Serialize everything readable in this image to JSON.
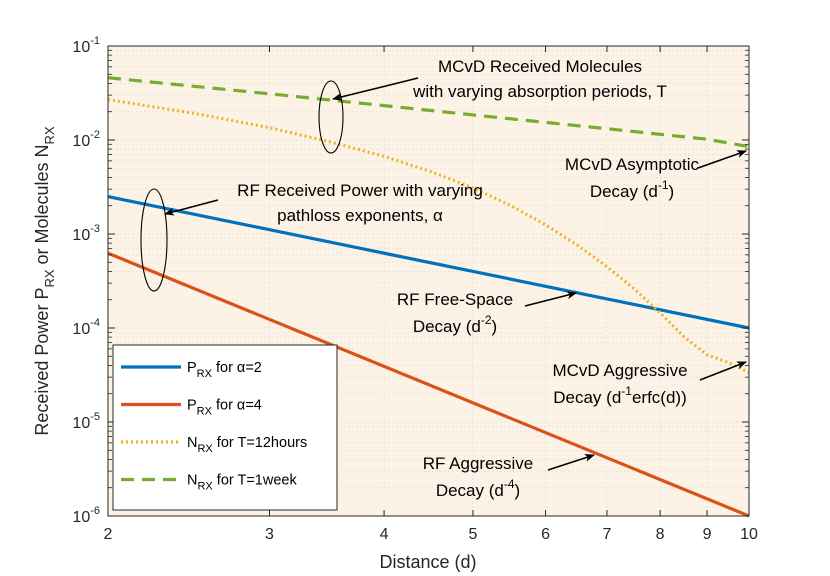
{
  "chart_data": {
    "type": "line",
    "x_scale": "log",
    "y_scale": "log",
    "xlabel": "Distance (d)",
    "ylabel": {
      "a": "Received Power P",
      "a_sub": "RX",
      "b": " or Molecules N",
      "b_sub": "RX"
    },
    "xlim": [
      2,
      10
    ],
    "ylim": [
      1e-06,
      0.1
    ],
    "x_ticks": [
      2,
      3,
      4,
      5,
      6,
      7,
      8,
      9,
      10
    ],
    "x_tick_labels": [
      "2",
      "3",
      "4",
      "5",
      "6",
      "7",
      "8",
      "9",
      "10"
    ],
    "y_ticks": [
      {
        "value": 1e-06,
        "base": "10",
        "exp": "-6"
      },
      {
        "value": 1e-05,
        "base": "10",
        "exp": "-5"
      },
      {
        "value": 0.0001,
        "base": "10",
        "exp": "-4"
      },
      {
        "value": 0.001,
        "base": "10",
        "exp": "-3"
      },
      {
        "value": 0.01,
        "base": "10",
        "exp": "-2"
      },
      {
        "value": 0.1,
        "base": "10",
        "exp": "-1"
      }
    ],
    "grid": true,
    "legend_position": "bottom-left",
    "series": [
      {
        "id": "p2",
        "name": {
          "main": "P",
          "sub": "RX",
          "rest": " for α=2"
        },
        "color": "#0072BD",
        "style": "solid",
        "x": [
          2,
          10
        ],
        "y": [
          0.0025,
          0.0001
        ]
      },
      {
        "id": "p4",
        "name": {
          "main": "P",
          "sub": "RX",
          "rest": " for α=4"
        },
        "color": "#D95319",
        "style": "solid",
        "x": [
          2,
          10
        ],
        "y": [
          0.000625,
          1e-06
        ]
      },
      {
        "id": "n12",
        "name": {
          "main": "N",
          "sub": "RX",
          "rest": " for T=12hours"
        },
        "color": "#EDB120",
        "style": "dotted",
        "x": [
          2,
          2.5,
          3,
          3.5,
          4,
          4.5,
          5,
          5.5,
          6,
          6.5,
          7,
          7.5,
          8,
          8.5,
          9,
          9.5,
          10
        ],
        "y": [
          0.027,
          0.019,
          0.0135,
          0.0095,
          0.0067,
          0.0046,
          0.0031,
          0.002,
          0.00125,
          0.00076,
          0.00045,
          0.00026,
          0.000145,
          8e-05,
          5.2e-05,
          4.3e-05,
          3.35e-05
        ]
      },
      {
        "id": "n1w",
        "name": {
          "main": "N",
          "sub": "RX",
          "rest": " for T=1week"
        },
        "color": "#77AC30",
        "style": "dashed",
        "x": [
          2,
          3,
          4,
          5,
          6,
          7,
          8,
          9,
          10
        ],
        "y": [
          0.046,
          0.031,
          0.0232,
          0.0185,
          0.0154,
          0.0132,
          0.0115,
          0.0102,
          0.0085
        ]
      }
    ],
    "annotations": [
      {
        "id": "mcvd-received",
        "lines": [
          {
            "text": "MCvD Received Molecules"
          },
          {
            "text": "with varying absorption periods, T"
          }
        ]
      },
      {
        "id": "mcvd-asymptotic",
        "lines": [
          {
            "text": "MCvD Asymptotic"
          },
          {
            "text": "Decay (d",
            "sup": "-1",
            "after": ")"
          }
        ]
      },
      {
        "id": "rf-received",
        "lines": [
          {
            "text": "RF Received Power with varying"
          },
          {
            "text": "pathloss exponents, α"
          }
        ]
      },
      {
        "id": "rf-free-space",
        "lines": [
          {
            "text": "RF Free-Space"
          },
          {
            "text": "Decay (d",
            "sup": "-2",
            "after": ")"
          }
        ]
      },
      {
        "id": "mcvd-aggressive",
        "lines": [
          {
            "text": "MCvD Aggressive"
          },
          {
            "text": "Decay (d",
            "sup": "-1",
            "after": "erfc(d))"
          }
        ]
      },
      {
        "id": "rf-aggressive",
        "lines": [
          {
            "text": "RF Aggressive"
          },
          {
            "text": "Decay (d",
            "sup": "-4",
            "after": ")"
          }
        ]
      }
    ]
  },
  "colors": {
    "plot_background": "#FDF2E6",
    "grid": "#D8D8D8",
    "axis": "#262626"
  }
}
